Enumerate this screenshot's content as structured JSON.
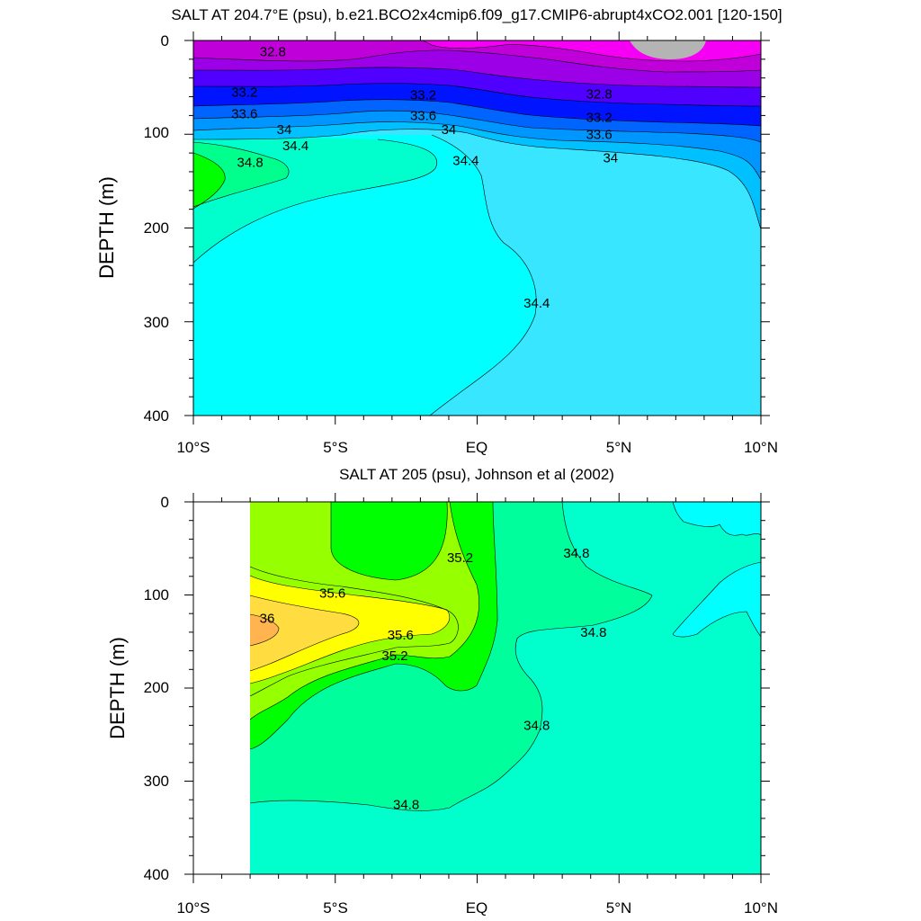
{
  "colors": {
    "model_fills": [
      "#F500F5",
      "#C000D8",
      "#9C00E6",
      "#5000FF",
      "#0014FF",
      "#0064FF",
      "#0096FF",
      "#00C0FF",
      "#38E6FF",
      "#00FFFF",
      "#00FFCC",
      "#00FF8C"
    ],
    "obs_fills": [
      "#00FFFF",
      "#00FFCC",
      "#00FF9C",
      "#00FF00",
      "#96FF00",
      "#FFFF00",
      "#FFDC40",
      "#FFB450"
    ],
    "land_missing": "#B4B4B4"
  },
  "chart_data": [
    {
      "type": "contour",
      "title": "SALT AT 204.7°E (psu), b.e21.BCO2x4cmip6.f09_g17.CMIP6-abrupt4xCO2.001 [120-150]",
      "ylabel": "DEPTH (m)",
      "xlabel": "",
      "xlim": [
        -10,
        10
      ],
      "ylim": [
        400,
        0
      ],
      "x_tick_labels": [
        "10°S",
        "5°S",
        "EQ",
        "5°N",
        "10°N"
      ],
      "y_tick_labels": [
        "0",
        "100",
        "200",
        "300",
        "400"
      ],
      "contour_levels": [
        32.8,
        33.0,
        33.2,
        33.4,
        33.6,
        33.8,
        34.0,
        34.2,
        34.4,
        34.6,
        34.8
      ],
      "contour_labels": [
        {
          "text": "32.8",
          "x": -7.2,
          "depth": 12
        },
        {
          "text": "33.2",
          "x": -8.2,
          "depth": 55
        },
        {
          "text": "33.2",
          "x": -1.9,
          "depth": 58
        },
        {
          "text": "32.8",
          "x": 4.3,
          "depth": 57
        },
        {
          "text": "33.6",
          "x": -8.2,
          "depth": 78
        },
        {
          "text": "33.6",
          "x": -1.9,
          "depth": 80
        },
        {
          "text": "33.2",
          "x": 4.3,
          "depth": 82
        },
        {
          "text": "34",
          "x": -6.8,
          "depth": 95
        },
        {
          "text": "34",
          "x": -1.0,
          "depth": 95
        },
        {
          "text": "33.6",
          "x": 4.3,
          "depth": 100
        },
        {
          "text": "34.4",
          "x": -6.4,
          "depth": 112
        },
        {
          "text": "34.8",
          "x": -8.0,
          "depth": 130
        },
        {
          "text": "34.4",
          "x": -0.4,
          "depth": 128
        },
        {
          "text": "34",
          "x": 4.7,
          "depth": 125
        },
        {
          "text": "34.4",
          "x": 2.1,
          "depth": 280
        }
      ]
    },
    {
      "type": "contour",
      "title": "SALT AT 205 (psu), Johnson et al (2002)",
      "ylabel": "DEPTH (m)",
      "xlabel": "",
      "xlim": [
        -10,
        10
      ],
      "ylim": [
        400,
        0
      ],
      "x_tick_labels": [
        "10°S",
        "5°S",
        "EQ",
        "5°N",
        "10°N"
      ],
      "y_tick_labels": [
        "0",
        "100",
        "200",
        "300",
        "400"
      ],
      "data_start_x": -8.0,
      "contour_levels": [
        34.6,
        34.8,
        35.0,
        35.2,
        35.4,
        35.6,
        35.8,
        36.0
      ],
      "contour_labels": [
        {
          "text": "35.2",
          "x": -0.6,
          "depth": 60
        },
        {
          "text": "34.8",
          "x": 3.5,
          "depth": 55
        },
        {
          "text": "35.6",
          "x": -5.1,
          "depth": 98
        },
        {
          "text": "36",
          "x": -7.4,
          "depth": 125
        },
        {
          "text": "35.6",
          "x": -2.7,
          "depth": 143
        },
        {
          "text": "35.2",
          "x": -2.9,
          "depth": 165
        },
        {
          "text": "34.8",
          "x": 4.1,
          "depth": 140
        },
        {
          "text": "34.8",
          "x": 2.1,
          "depth": 240
        },
        {
          "text": "34.8",
          "x": -2.5,
          "depth": 325
        }
      ]
    }
  ]
}
